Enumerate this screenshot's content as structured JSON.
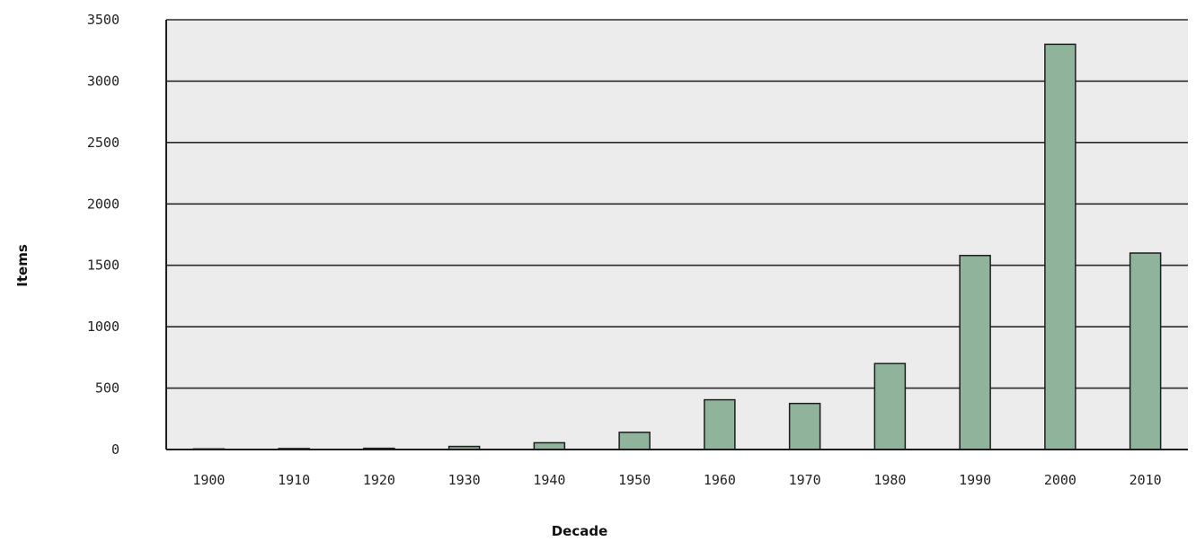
{
  "chart_data": {
    "type": "bar",
    "title": "",
    "xlabel": "Decade",
    "ylabel": "Items",
    "categories": [
      "1900",
      "1910",
      "1920",
      "1930",
      "1940",
      "1950",
      "1960",
      "1970",
      "1980",
      "1990",
      "2000",
      "2010"
    ],
    "values": [
      5,
      8,
      10,
      25,
      55,
      140,
      405,
      375,
      700,
      1580,
      3300,
      1600
    ],
    "ylim": [
      0,
      3500
    ],
    "yticks": [
      "0",
      "500",
      "1000",
      "1500",
      "2000",
      "2500",
      "3000",
      "3500"
    ],
    "grid": true,
    "legend": "none",
    "colors": {
      "bar": "#8fb39b",
      "bar_edge": "#1e1e1e",
      "plot_bg": "#ececec",
      "grid": "#2a2a2a"
    }
  }
}
